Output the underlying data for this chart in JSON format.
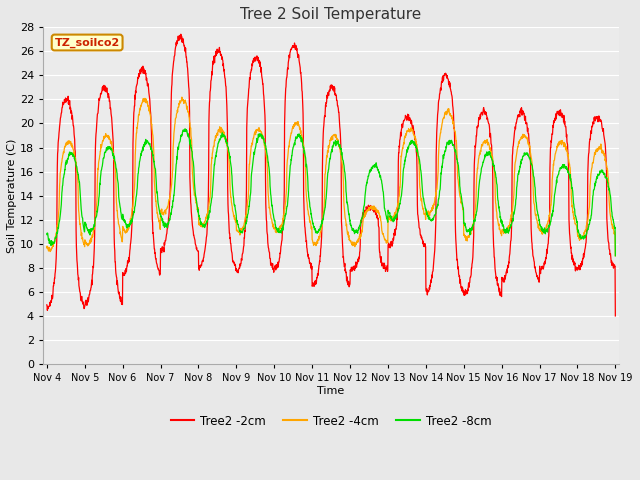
{
  "title": "Tree 2 Soil Temperature",
  "xlabel": "Time",
  "ylabel": "Soil Temperature (C)",
  "annotation": "TZ_soilco2",
  "ylim": [
    0,
    28
  ],
  "yticks": [
    0,
    2,
    4,
    6,
    8,
    10,
    12,
    14,
    16,
    18,
    20,
    22,
    24,
    26,
    28
  ],
  "xtick_labels": [
    "Nov 4",
    "Nov 5",
    "Nov 6",
    "Nov 7",
    "Nov 8",
    "Nov 9",
    "Nov 10",
    "Nov 11",
    "Nov 12",
    "Nov 13",
    "Nov 14",
    "Nov 15",
    "Nov 16",
    "Nov 17",
    "Nov 18",
    "Nov 19"
  ],
  "color_2cm": "#FF0000",
  "color_4cm": "#FFA500",
  "color_8cm": "#00DD00",
  "legend_labels": [
    "Tree2 -2cm",
    "Tree2 -4cm",
    "Tree2 -8cm"
  ],
  "bg_color": "#E8E8E8",
  "plot_bg_color": "#EBEBEB",
  "grid_color": "#FFFFFF",
  "title_fontsize": 11,
  "label_fontsize": 8,
  "tick_fontsize": 8
}
